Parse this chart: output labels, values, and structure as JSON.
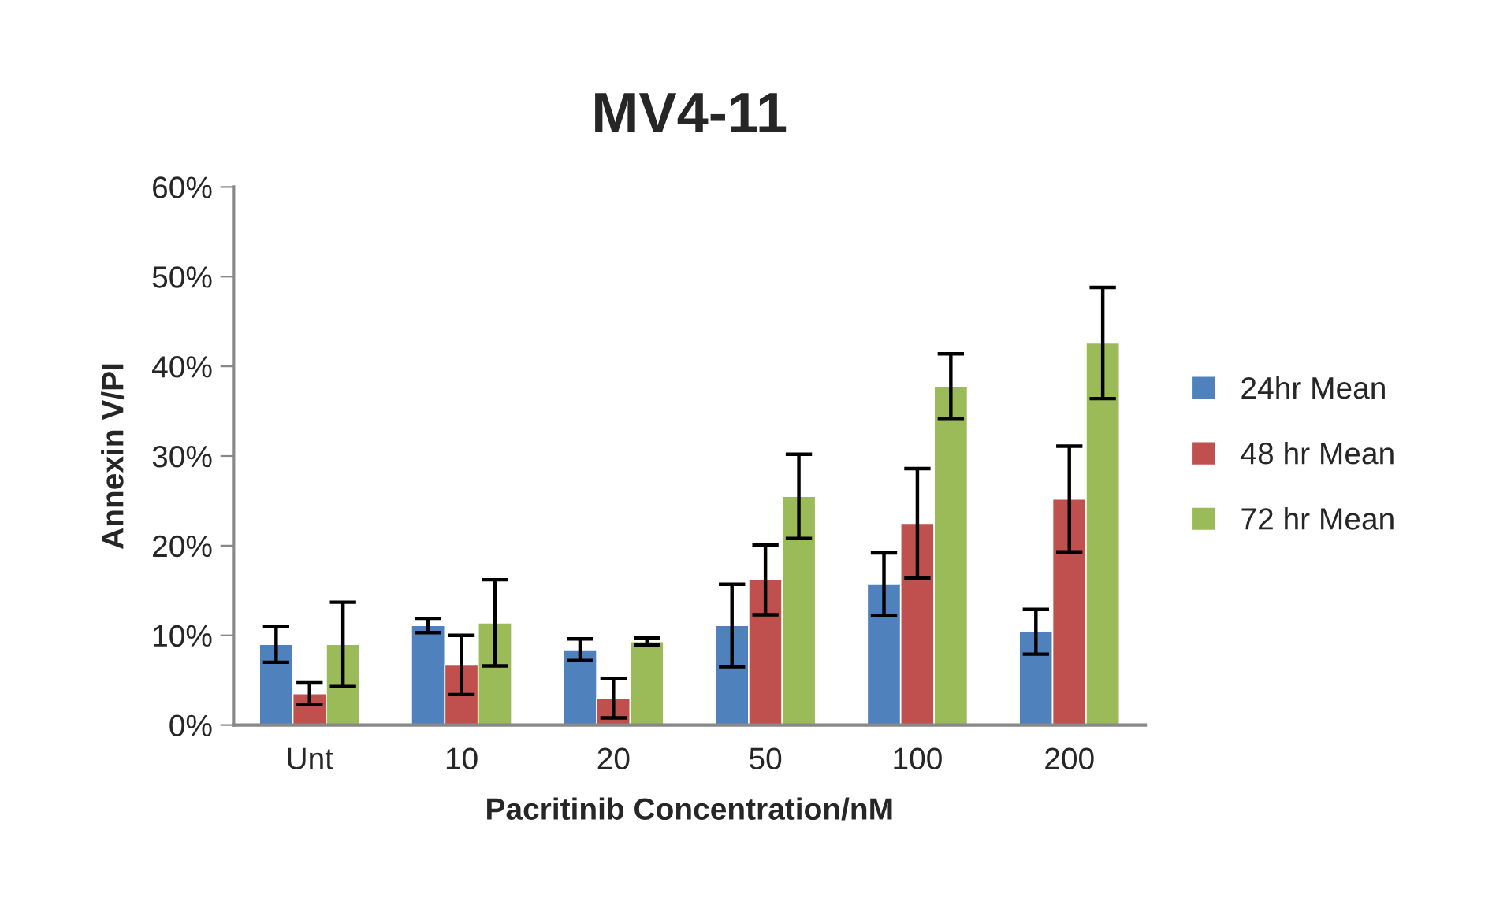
{
  "chart_data": {
    "type": "bar",
    "title": "MV4-11",
    "xlabel": "Pacritinib Concentration/nM",
    "ylabel": "Annexin V/PI",
    "categories": [
      "Unt",
      "10",
      "20",
      "50",
      "100",
      "200"
    ],
    "series": [
      {
        "name": "24hr Mean",
        "color": "#4f81bd",
        "values": [
          9.0,
          11.1,
          8.4,
          11.1,
          15.7,
          10.4
        ],
        "errors": [
          2.0,
          0.8,
          1.2,
          4.6,
          3.5,
          2.5
        ]
      },
      {
        "name": "48 hr Mean",
        "color": "#c0504d",
        "values": [
          3.5,
          6.7,
          3.0,
          16.2,
          22.5,
          25.2
        ],
        "errors": [
          1.2,
          3.3,
          2.2,
          3.9,
          6.1,
          5.9
        ]
      },
      {
        "name": "72 hr Mean",
        "color": "#9bbb59",
        "values": [
          9.0,
          11.4,
          9.3,
          25.5,
          37.8,
          42.6
        ],
        "errors": [
          4.7,
          4.8,
          0.4,
          4.7,
          3.6,
          6.2
        ]
      }
    ],
    "ylim": [
      0,
      60
    ],
    "yticks": [
      {
        "value": 0,
        "label": "0%"
      },
      {
        "value": 10,
        "label": "10%"
      },
      {
        "value": 20,
        "label": "20%"
      },
      {
        "value": 30,
        "label": "30%"
      },
      {
        "value": 40,
        "label": "40%"
      },
      {
        "value": 50,
        "label": "50%"
      },
      {
        "value": 60,
        "label": "60%"
      }
    ],
    "legend": "right",
    "grid": false
  }
}
